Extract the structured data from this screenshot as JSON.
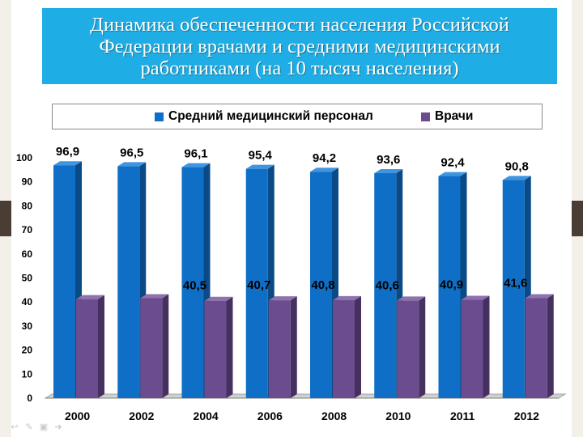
{
  "slide": {
    "title": "Динамика обеспеченности населения Российской Федерации врачами и средними медицинскими работниками (на 10 тысяч населения)"
  },
  "legend": [
    {
      "label": "Средний медицинский персонал",
      "color": "#0f6fc6"
    },
    {
      "label": "Врачи",
      "color": "#6b4c8f"
    }
  ],
  "colors": {
    "title_bg": "#1eaee5",
    "series1_front": "#0f6fc6",
    "series1_side": "#0a4a86",
    "series1_top": "#3f95e0",
    "series2_front": "#6b4c8f",
    "series2_side": "#46305f",
    "series2_top": "#8e72ad",
    "floor": "#a6a6a6"
  },
  "icons": [
    "back-arrow-icon",
    "pen-icon",
    "slides-icon",
    "forward-arrow-icon"
  ],
  "chart_data": {
    "type": "bar",
    "title": "Динамика обеспеченности населения Российской Федерации врачами и средними медицинскими работниками (на 10 тысяч населения)",
    "categories": [
      "2000",
      "2002",
      "2004",
      "2006",
      "2008",
      "2010",
      "2011",
      "2012"
    ],
    "series": [
      {
        "name": "Средний медицинский персонал",
        "values": [
          96.9,
          96.5,
          96.1,
          95.4,
          94.2,
          93.6,
          92.4,
          90.8
        ],
        "labels": [
          "96,9",
          "96,5",
          "96,1",
          "95,4",
          "94,2",
          "93,6",
          "92,4",
          "90,8"
        ]
      },
      {
        "name": "Врачи",
        "values": [
          41.2,
          41.6,
          40.5,
          40.7,
          40.8,
          40.6,
          40.9,
          41.6
        ],
        "labels": [
          "",
          "",
          "40,5",
          "40,7",
          "40,8",
          "40,6",
          "40,9",
          "41,6"
        ]
      }
    ],
    "yticks": [
      "0",
      "10",
      "20",
      "30",
      "40",
      "50",
      "60",
      "70",
      "80",
      "90",
      "100"
    ],
    "ylim": [
      0,
      100
    ],
    "xlabel": "",
    "ylabel": "",
    "legend_position": "top"
  }
}
